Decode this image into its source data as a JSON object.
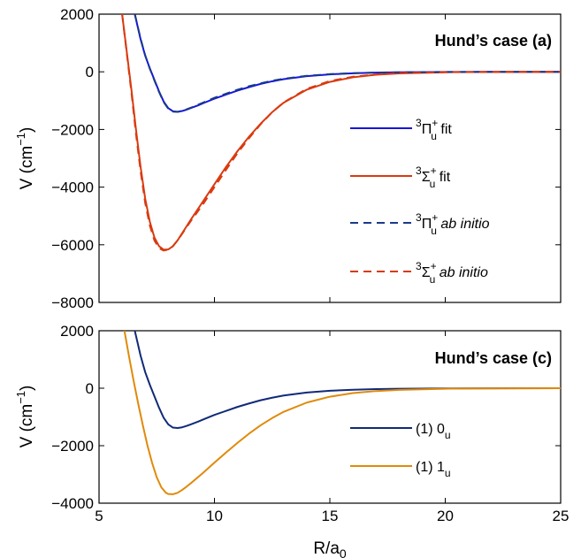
{
  "chart_data": [
    {
      "type": "line",
      "title": "Hund’s case (a)",
      "xlabel": "R/a0",
      "ylabel": "V (cm−1)",
      "xlim": [
        5,
        25
      ],
      "ylim": [
        -8000,
        2000
      ],
      "yticks": [
        2000,
        0,
        -2000,
        -4000,
        -6000,
        -8000
      ],
      "ytick_labels": [
        "2000",
        "0",
        "−2000",
        "−4000",
        "−6000",
        "−8000"
      ],
      "legend_position": "right",
      "series": [
        {
          "name": "3Πu+ fit",
          "legend": {
            "sup": "3",
            "main": "Π",
            "subsup_sup": "+",
            "subsup_sub": "u",
            "tail": " fit",
            "tail_italic": false
          },
          "color": "#1515dd",
          "style": "solid",
          "x": [
            6.55,
            6.8,
            7.0,
            7.2,
            7.4,
            7.6,
            7.8,
            8.0,
            8.2,
            8.4,
            8.6,
            8.8,
            9.0,
            9.3,
            9.6,
            10.0,
            10.5,
            11.0,
            11.5,
            12.0,
            12.5,
            13.0,
            14.0,
            15.0,
            16.0,
            17.0,
            18.0,
            20.0,
            22.0,
            25.0
          ],
          "y": [
            2000,
            1130,
            560,
            120,
            -280,
            -680,
            -1030,
            -1260,
            -1370,
            -1385,
            -1360,
            -1310,
            -1250,
            -1160,
            -1060,
            -930,
            -790,
            -650,
            -530,
            -420,
            -330,
            -255,
            -150,
            -88,
            -52,
            -30,
            -18,
            -7,
            -3,
            0
          ]
        },
        {
          "name": "3Σu+ fit",
          "legend": {
            "sup": "3",
            "main": "Σ",
            "subsup_sup": "+",
            "subsup_sub": "u",
            "tail": " fit",
            "tail_italic": false
          },
          "color": "#d93a10",
          "style": "solid",
          "x": [
            6.0,
            6.2,
            6.4,
            6.6,
            6.8,
            7.0,
            7.2,
            7.4,
            7.6,
            7.8,
            8.0,
            8.2,
            8.4,
            8.6,
            8.8,
            9.0,
            9.5,
            10.0,
            10.5,
            11.0,
            11.5,
            12.0,
            12.5,
            13.0,
            14.0,
            15.0,
            16.0,
            17.0,
            18.0,
            20.0,
            22.0,
            25.0
          ],
          "y": [
            2000,
            700,
            -600,
            -2000,
            -3300,
            -4400,
            -5200,
            -5750,
            -6050,
            -6170,
            -6160,
            -6050,
            -5850,
            -5600,
            -5350,
            -5100,
            -4500,
            -3900,
            -3300,
            -2750,
            -2250,
            -1800,
            -1400,
            -1070,
            -620,
            -350,
            -190,
            -100,
            -55,
            -15,
            -5,
            0
          ]
        },
        {
          "name": "3Πu+ ab initio",
          "legend": {
            "sup": "3",
            "main": "Π",
            "subsup_sup": "+",
            "subsup_sub": "u",
            "tail": " ab initio",
            "tail_italic": true
          },
          "color": "#1a3a8a",
          "style": "dashed",
          "x": [
            6.55,
            6.8,
            7.0,
            7.2,
            7.4,
            7.6,
            7.8,
            8.0,
            8.2,
            8.4,
            8.6,
            8.8,
            9.0,
            9.3,
            9.6,
            10.0,
            10.5,
            11.0,
            11.5,
            12.0,
            12.5,
            13.0,
            14.0,
            15.0,
            16.0,
            17.0,
            18.0,
            20.0,
            22.0,
            25.0
          ],
          "y": [
            2000,
            1150,
            570,
            110,
            -300,
            -700,
            -1050,
            -1280,
            -1380,
            -1390,
            -1360,
            -1300,
            -1240,
            -1140,
            -1040,
            -900,
            -760,
            -620,
            -500,
            -400,
            -310,
            -240,
            -140,
            -80,
            -48,
            -28,
            -16,
            -6,
            -2,
            0
          ]
        },
        {
          "name": "3Σu+ ab initio",
          "legend": {
            "sup": "3",
            "main": "Σ",
            "subsup_sup": "+",
            "subsup_sub": "u",
            "tail": " ab initio",
            "tail_italic": true
          },
          "color": "#d93a10",
          "style": "dashed",
          "x": [
            6.0,
            6.2,
            6.4,
            6.6,
            6.8,
            7.0,
            7.2,
            7.4,
            7.6,
            7.8,
            8.0,
            8.2,
            8.4,
            8.6,
            8.8,
            9.0,
            9.5,
            10.0,
            10.5,
            11.0,
            11.5,
            12.0,
            12.5,
            13.0,
            14.0,
            15.0,
            16.0,
            17.0,
            18.0,
            20.0,
            22.0,
            25.0
          ],
          "y": [
            2000,
            650,
            -700,
            -2150,
            -3450,
            -4550,
            -5330,
            -5850,
            -6120,
            -6200,
            -6170,
            -6050,
            -5850,
            -5620,
            -5380,
            -5150,
            -4600,
            -4000,
            -3400,
            -2820,
            -2300,
            -1820,
            -1400,
            -1060,
            -590,
            -320,
            -170,
            -90,
            -48,
            -12,
            -4,
            0
          ]
        }
      ]
    },
    {
      "type": "line",
      "title": "Hund’s case (c)",
      "xlabel": "R/a0",
      "ylabel": "V (cm−1)",
      "xlim": [
        5,
        25
      ],
      "ylim": [
        -4000,
        2000
      ],
      "xticks": [
        5,
        10,
        15,
        20,
        25
      ],
      "xtick_labels": [
        "5",
        "10",
        "15",
        "20",
        "25"
      ],
      "yticks": [
        2000,
        0,
        -2000,
        -4000
      ],
      "ytick_labels": [
        "2000",
        "0",
        "−2000",
        "−4000"
      ],
      "legend_position": "right",
      "series": [
        {
          "name": "(1) 0u",
          "legend": {
            "pre": "(1) ",
            "main": "0",
            "sub": "u"
          },
          "color": "#102a78",
          "style": "solid",
          "x": [
            6.55,
            6.8,
            7.0,
            7.2,
            7.4,
            7.6,
            7.8,
            8.0,
            8.2,
            8.4,
            8.6,
            8.8,
            9.0,
            9.3,
            9.6,
            10.0,
            10.5,
            11.0,
            11.5,
            12.0,
            12.5,
            13.0,
            14.0,
            15.0,
            16.0,
            17.0,
            18.0,
            20.0,
            22.0,
            25.0
          ],
          "y": [
            2000,
            1130,
            560,
            120,
            -280,
            -680,
            -1030,
            -1260,
            -1370,
            -1385,
            -1360,
            -1310,
            -1250,
            -1160,
            -1060,
            -930,
            -790,
            -650,
            -530,
            -420,
            -330,
            -255,
            -150,
            -88,
            -52,
            -30,
            -18,
            -7,
            -3,
            0
          ]
        },
        {
          "name": "(1) 1u",
          "legend": {
            "pre": "(1) ",
            "main": "1",
            "sub": "u"
          },
          "color": "#e08a0a",
          "style": "solid",
          "x": [
            6.1,
            6.3,
            6.5,
            6.7,
            6.9,
            7.1,
            7.3,
            7.5,
            7.7,
            7.9,
            8.0,
            8.2,
            8.4,
            8.6,
            8.8,
            9.0,
            9.5,
            10.0,
            10.5,
            11.0,
            11.5,
            12.0,
            12.5,
            13.0,
            14.0,
            15.0,
            16.0,
            17.0,
            18.0,
            20.0,
            22.0,
            25.0
          ],
          "y": [
            2000,
            1100,
            250,
            -550,
            -1300,
            -2000,
            -2600,
            -3100,
            -3450,
            -3640,
            -3680,
            -3690,
            -3640,
            -3540,
            -3420,
            -3290,
            -2950,
            -2590,
            -2240,
            -1900,
            -1580,
            -1290,
            -1040,
            -820,
            -500,
            -295,
            -170,
            -98,
            -56,
            -18,
            -6,
            0
          ]
        }
      ]
    }
  ]
}
